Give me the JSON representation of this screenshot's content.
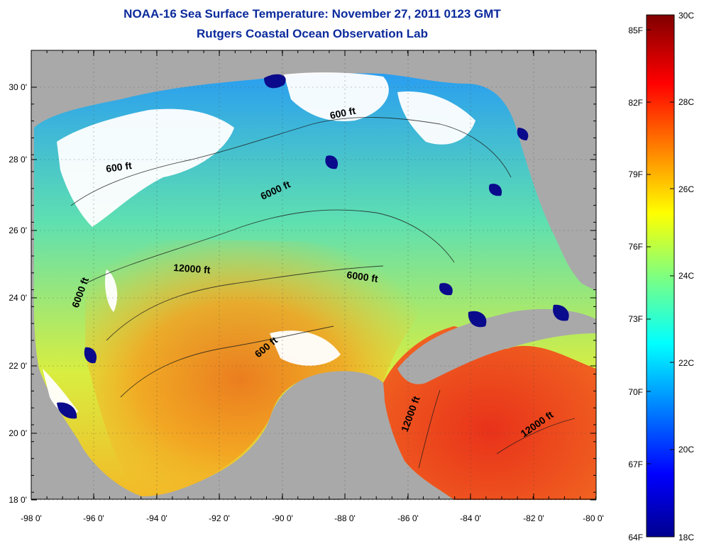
{
  "header": {
    "title": "NOAA-16 Sea Surface Temperature:  November 27, 2011 0123 GMT",
    "subtitle": "Rutgers Coastal Ocean Observation Lab"
  },
  "map": {
    "lon_ticks": [
      "-98 0'",
      "-96 0'",
      "-94 0'",
      "-92 0'",
      "-90 0'",
      "-88 0'",
      "-86 0'",
      "-84 0'",
      "-82 0'",
      "-80 0'"
    ],
    "lat_ticks": [
      "30 0'",
      "28 0'",
      "26 0'",
      "24 0'",
      "22 0'",
      "20 0'",
      "18 0'"
    ],
    "contour_labels": [
      "600 ft",
      "600 ft",
      "6000 ft",
      "12000 ft",
      "6000 ft",
      "600 ft",
      "6000 ft",
      "12000 ft",
      "12000 ft"
    ]
  },
  "colorbar": {
    "f_labels": [
      "85F",
      "82F",
      "79F",
      "76F",
      "73F",
      "70F",
      "67F",
      "64F"
    ],
    "c_labels": [
      "30C",
      "28C",
      "26C",
      "24C",
      "22C",
      "20C",
      "18C"
    ],
    "colors": {
      "land": "#a9a9a9",
      "cloud": "#ffffff",
      "warm": "#e8401e",
      "cold": "#0a0a8c"
    }
  }
}
